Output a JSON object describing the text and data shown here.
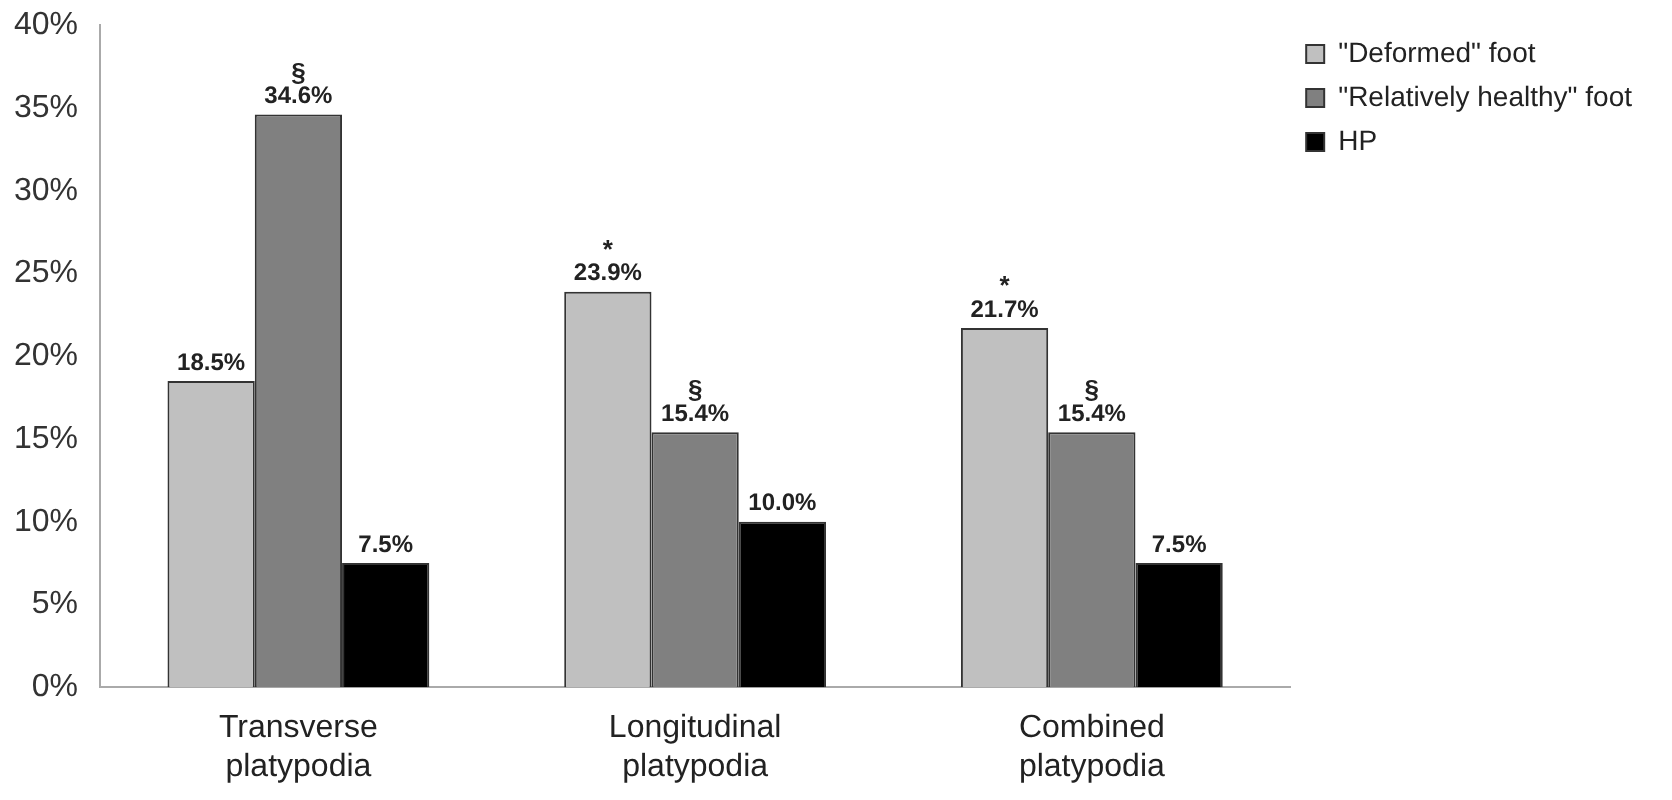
{
  "chart_data": {
    "type": "bar",
    "categories": [
      "Transverse platypodia",
      "Longitudinal platypodia",
      "Combined platypodia"
    ],
    "series": [
      {
        "name": "\"Deformed\" foot",
        "color": "#c0c0c0",
        "values": [
          18.5,
          23.9,
          21.7
        ],
        "value_labels": [
          "18.5%",
          "23.9%",
          "21.7%"
        ]
      },
      {
        "name": "\"Relatively healthy\" foot",
        "color": "#808080",
        "values": [
          34.6,
          15.4,
          15.4
        ],
        "value_labels": [
          "34.6%",
          "15.4%",
          "15.4%"
        ]
      },
      {
        "name": "HP",
        "color": "#000000",
        "values": [
          7.5,
          10.0,
          7.5
        ],
        "value_labels": [
          "7.5%",
          "10.0%",
          "7.5%"
        ]
      }
    ],
    "ylim": [
      0,
      40
    ],
    "yticks": [
      {
        "value": 0,
        "label": "0%"
      },
      {
        "value": 5,
        "label": "5%"
      },
      {
        "value": 10,
        "label": "10%"
      },
      {
        "value": 15,
        "label": "15%"
      },
      {
        "value": 20,
        "label": "20%"
      },
      {
        "value": 25,
        "label": "25%"
      },
      {
        "value": 30,
        "label": "30%"
      },
      {
        "value": 35,
        "label": "35%"
      },
      {
        "value": 40,
        "label": "40%"
      }
    ],
    "annotations": [
      {
        "text": "§",
        "x": "Transverse platypodia",
        "y": 34.6
      },
      "*",
      {
        "text": "§",
        "x": "Longitudinal platypodia",
        "y": 15.4
      },
      "*",
      {
        "text": "§",
        "x": "Combined platypodia",
        "y": 15.4
      }
    ],
    "grid": false,
    "legend": "top right"
  }
}
